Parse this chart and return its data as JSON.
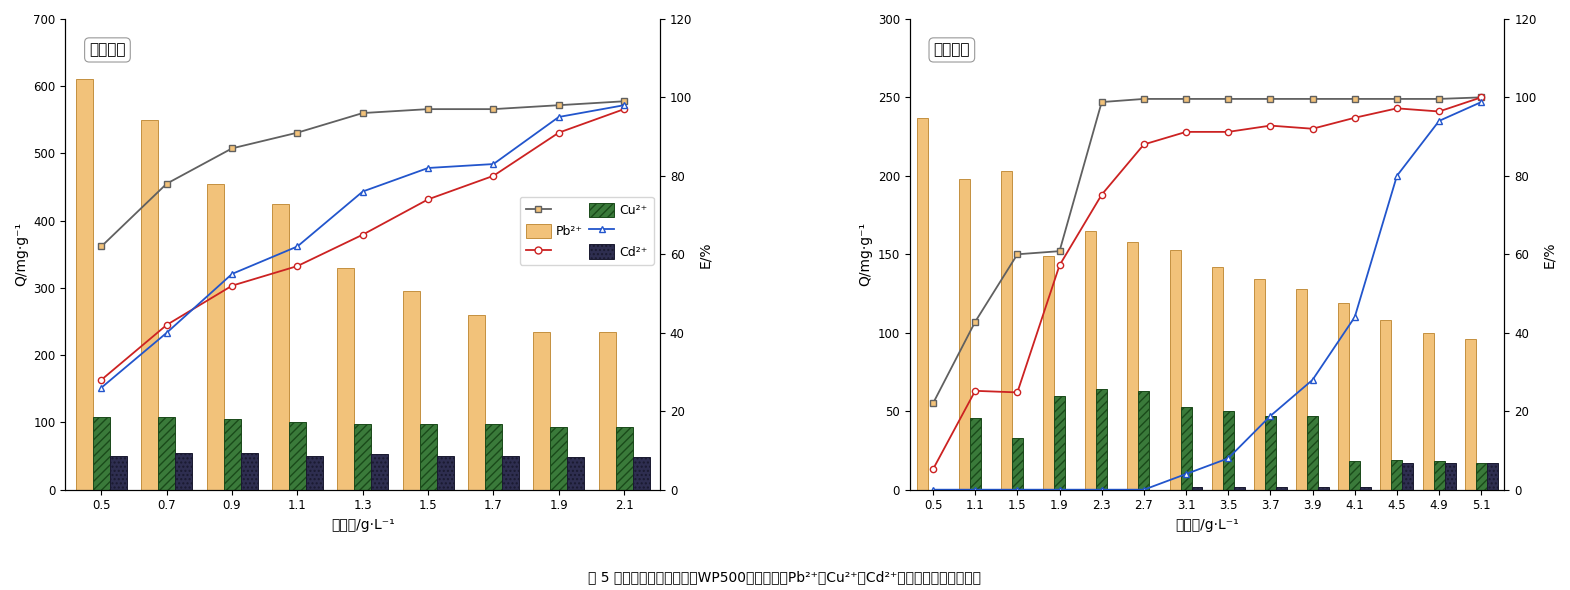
{
  "left": {
    "title": "单一体系",
    "x_labels": [
      "0.5",
      "0.7",
      "0.9",
      "1.1",
      "1.3",
      "1.5",
      "1.7",
      "1.9",
      "2.1"
    ],
    "pb_bars": [
      610,
      550,
      455,
      425,
      330,
      295,
      260,
      235,
      235
    ],
    "cu_bars": [
      108,
      108,
      105,
      100,
      97,
      97,
      97,
      93,
      93
    ],
    "cd_bars": [
      50,
      55,
      55,
      50,
      53,
      50,
      50,
      48,
      48
    ],
    "pb_E": [
      62,
      78,
      87,
      91,
      96,
      97,
      97,
      98,
      99
    ],
    "cu_E": [
      28,
      42,
      52,
      57,
      65,
      74,
      80,
      91,
      97
    ],
    "cd_E": [
      26,
      40,
      55,
      62,
      76,
      82,
      83,
      95,
      98
    ],
    "ylim_left": [
      0,
      700
    ],
    "ylim_right": [
      0,
      120
    ],
    "yticks_left": [
      0,
      100,
      200,
      300,
      400,
      500,
      600,
      700
    ],
    "yticks_right": [
      0,
      20,
      40,
      60,
      80,
      100,
      120
    ],
    "lines_on_right_axis": true
  },
  "right": {
    "title": "复合体系",
    "x_labels": [
      "0.5",
      "1.1",
      "1.5",
      "1.9",
      "2.3",
      "2.7",
      "3.1",
      "3.5",
      "3.7",
      "3.9",
      "4.1",
      "4.5",
      "4.9",
      "5.1"
    ],
    "pb_bars": [
      237,
      198,
      203,
      149,
      165,
      158,
      153,
      142,
      134,
      128,
      119,
      108,
      100,
      96
    ],
    "cu_bars": [
      0,
      46,
      33,
      60,
      64,
      63,
      53,
      50,
      47,
      47,
      18,
      19,
      18,
      17
    ],
    "cd_bars": [
      0,
      0,
      0,
      0,
      0,
      0,
      2,
      2,
      2,
      2,
      2,
      17,
      17,
      17
    ],
    "pb_Q": [
      55,
      107,
      150,
      152,
      247,
      249,
      249,
      249,
      249,
      249,
      249,
      249,
      249,
      250
    ],
    "cu_Q": [
      13,
      63,
      62,
      143,
      188,
      220,
      228,
      228,
      232,
      230,
      237,
      243,
      241,
      250
    ],
    "cd_Q": [
      0,
      0,
      0,
      0,
      0,
      0,
      10,
      20,
      47,
      70,
      110,
      200,
      235,
      247
    ],
    "ylim_left": [
      0,
      300
    ],
    "ylim_right": [
      0,
      120
    ],
    "yticks_left": [
      0,
      50,
      100,
      150,
      200,
      250,
      300
    ],
    "yticks_right": [
      0,
      20,
      40,
      60,
      80,
      100,
      120
    ],
    "lines_on_right_axis": false
  },
  "pb_bar_color": "#F2C27A",
  "pb_bar_edge": "#C49040",
  "cu_bar_color": "#3A7A3A",
  "cu_bar_edge": "#1A4A1A",
  "cd_bar_color": "#2E2E50",
  "cd_bar_edge": "#1A1A30",
  "pb_line_color": "#606060",
  "cu_line_color": "#CC2222",
  "cd_line_color": "#2255CC",
  "bar_width": 0.26,
  "ylabel_left": "Q/mg·g⁻¹",
  "ylabel_right": "E/%",
  "xlabel": "投加量/g·L⁻¹",
  "caption": "图 5 单一和复合污染体系中WP500的投加量对Pb²⁺、Cu²⁺和Cd²⁺吸附量和去除率的影响"
}
